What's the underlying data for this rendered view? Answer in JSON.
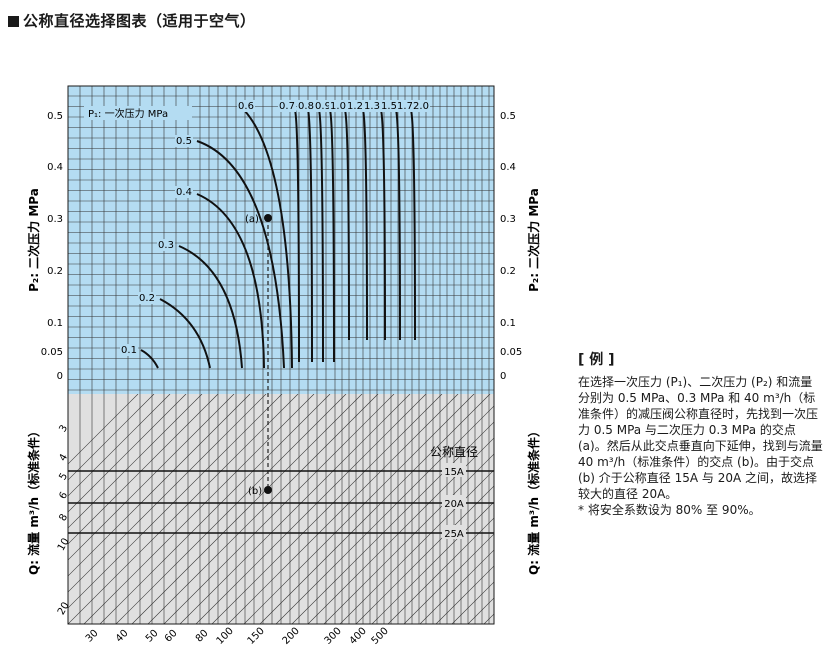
{
  "page_title": "公称直径选择图表（适用于空气）",
  "example": {
    "heading": "[ 例 ]",
    "body": "在选择一次压力 (P₁)、二次压力 (P₂) 和流量分别为 0.5 MPa、0.3 MPa 和 40 m³/h（标准条件）的减压阀公称直径时，先找到一次压力 0.5 MPa 与二次压力 0.3 MPa 的交点 (a)。然后从此交点垂直向下延伸，找到与流量 40 m³/h（标准条件）的交点 (b)。由于交点 (b) 介于公称直径 15A 与 20A 之间，故选择较大的直径 20A。",
    "note": "* 将安全系数设为 80% 至 90%。"
  },
  "colors": {
    "upper_bg": "#b4dcf2",
    "lower_bg": "#e0e0e0",
    "grid": "#1a1a1a",
    "curve": "#111111"
  },
  "chart_data": {
    "type": "line",
    "upper_panel": {
      "ylabel": "P₂: 二次压力 MPa",
      "yticks": [
        "0.5",
        "0.4",
        "0.3",
        "0.2",
        "0.1",
        "0.05",
        "0"
      ],
      "curve_label_title": "P₁: 一次压力 MPa",
      "series": [
        {
          "name": "0.1",
          "points": [
            [
              0.1,
              0.1
            ],
            [
              0.08,
              0.06
            ]
          ]
        },
        {
          "name": "0.2",
          "points": [
            [
              0.2,
              0.2
            ],
            [
              0.15,
              0.1
            ]
          ]
        },
        {
          "name": "0.3",
          "points": [
            [
              0.3,
              0.3
            ],
            [
              0.22,
              0.15
            ]
          ]
        },
        {
          "name": "0.4",
          "points": [
            [
              0.4,
              0.4
            ],
            [
              0.3,
              0.2
            ]
          ]
        },
        {
          "name": "0.5",
          "points": [
            [
              0.5,
              0.5
            ],
            [
              0.4,
              0.3
            ]
          ]
        },
        {
          "name": "0.6",
          "points": [
            [
              0.6,
              0.5
            ],
            [
              0.4,
              0.35
            ]
          ]
        }
      ],
      "vertical_curve_labels": [
        "0.7",
        "0.8",
        "0.9",
        "1.0",
        "1.2",
        "1.3",
        "1.5",
        "1.7",
        "2.0"
      ],
      "points": [
        {
          "label": "(a)",
          "p1": 0.5,
          "p2": 0.3
        }
      ]
    },
    "lower_panel": {
      "ylabel": "Q: 流量 m³/h（标准条件）",
      "yticks": [
        "3",
        "4",
        "5",
        "6",
        "8",
        "10",
        "20"
      ],
      "xticks": [
        "30",
        "40",
        "50",
        "60",
        "80",
        "100",
        "150",
        "200",
        "300",
        "400",
        "500"
      ],
      "nominal_title": "公称直径",
      "nominal_sizes": [
        "15A",
        "20A",
        "25A"
      ],
      "points": [
        {
          "label": "(b)",
          "flow": 40
        }
      ]
    }
  }
}
